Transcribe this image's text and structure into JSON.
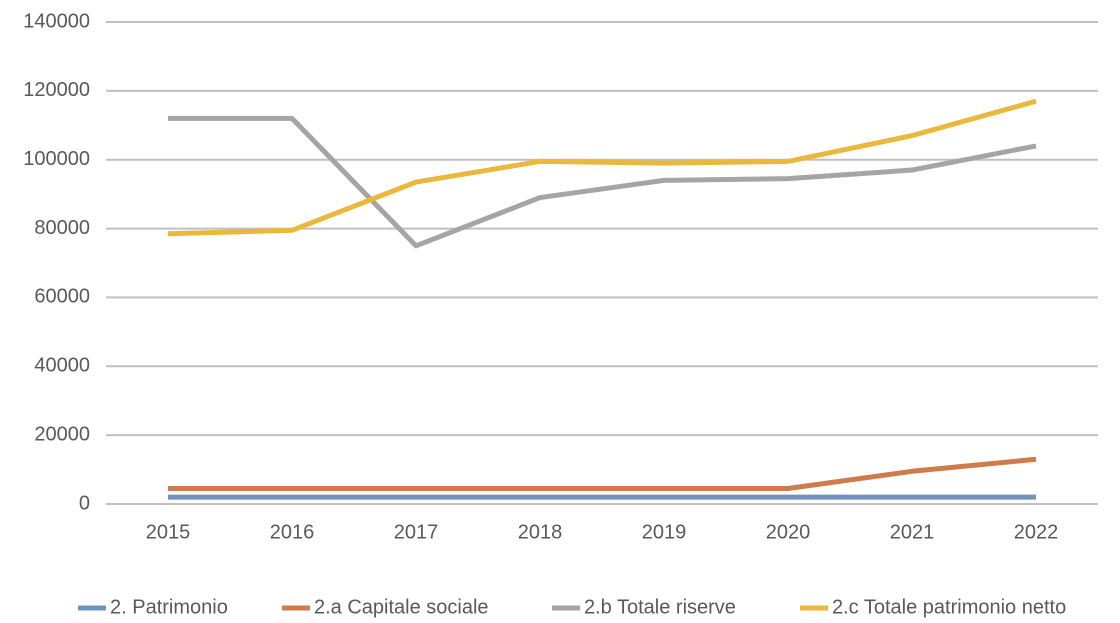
{
  "chart_data": {
    "type": "line",
    "categories": [
      "2015",
      "2016",
      "2017",
      "2018",
      "2019",
      "2020",
      "2021",
      "2022"
    ],
    "series": [
      {
        "name": "2. Patrimonio",
        "color": "#6f93bd",
        "values": [
          2000,
          2000,
          2000,
          2000,
          2000,
          2000,
          2000,
          2000
        ]
      },
      {
        "name": "2.a Capitale sociale",
        "color": "#cf7c4c",
        "values": [
          4500,
          4500,
          4500,
          4500,
          4500,
          4500,
          9500,
          13000
        ]
      },
      {
        "name": "2.b Totale riserve",
        "color": "#a5a5a5",
        "values": [
          112000,
          112000,
          75000,
          89000,
          94000,
          94500,
          97000,
          104000
        ]
      },
      {
        "name": "2.c Totale patrimonio netto",
        "color": "#e9b83c",
        "values": [
          78500,
          79500,
          93500,
          99500,
          99000,
          99500,
          107000,
          117000
        ]
      }
    ],
    "ylim": [
      0,
      140000
    ],
    "yticks": [
      0,
      20000,
      40000,
      60000,
      80000,
      100000,
      120000,
      140000
    ],
    "grid": true,
    "legend": "bottom"
  }
}
